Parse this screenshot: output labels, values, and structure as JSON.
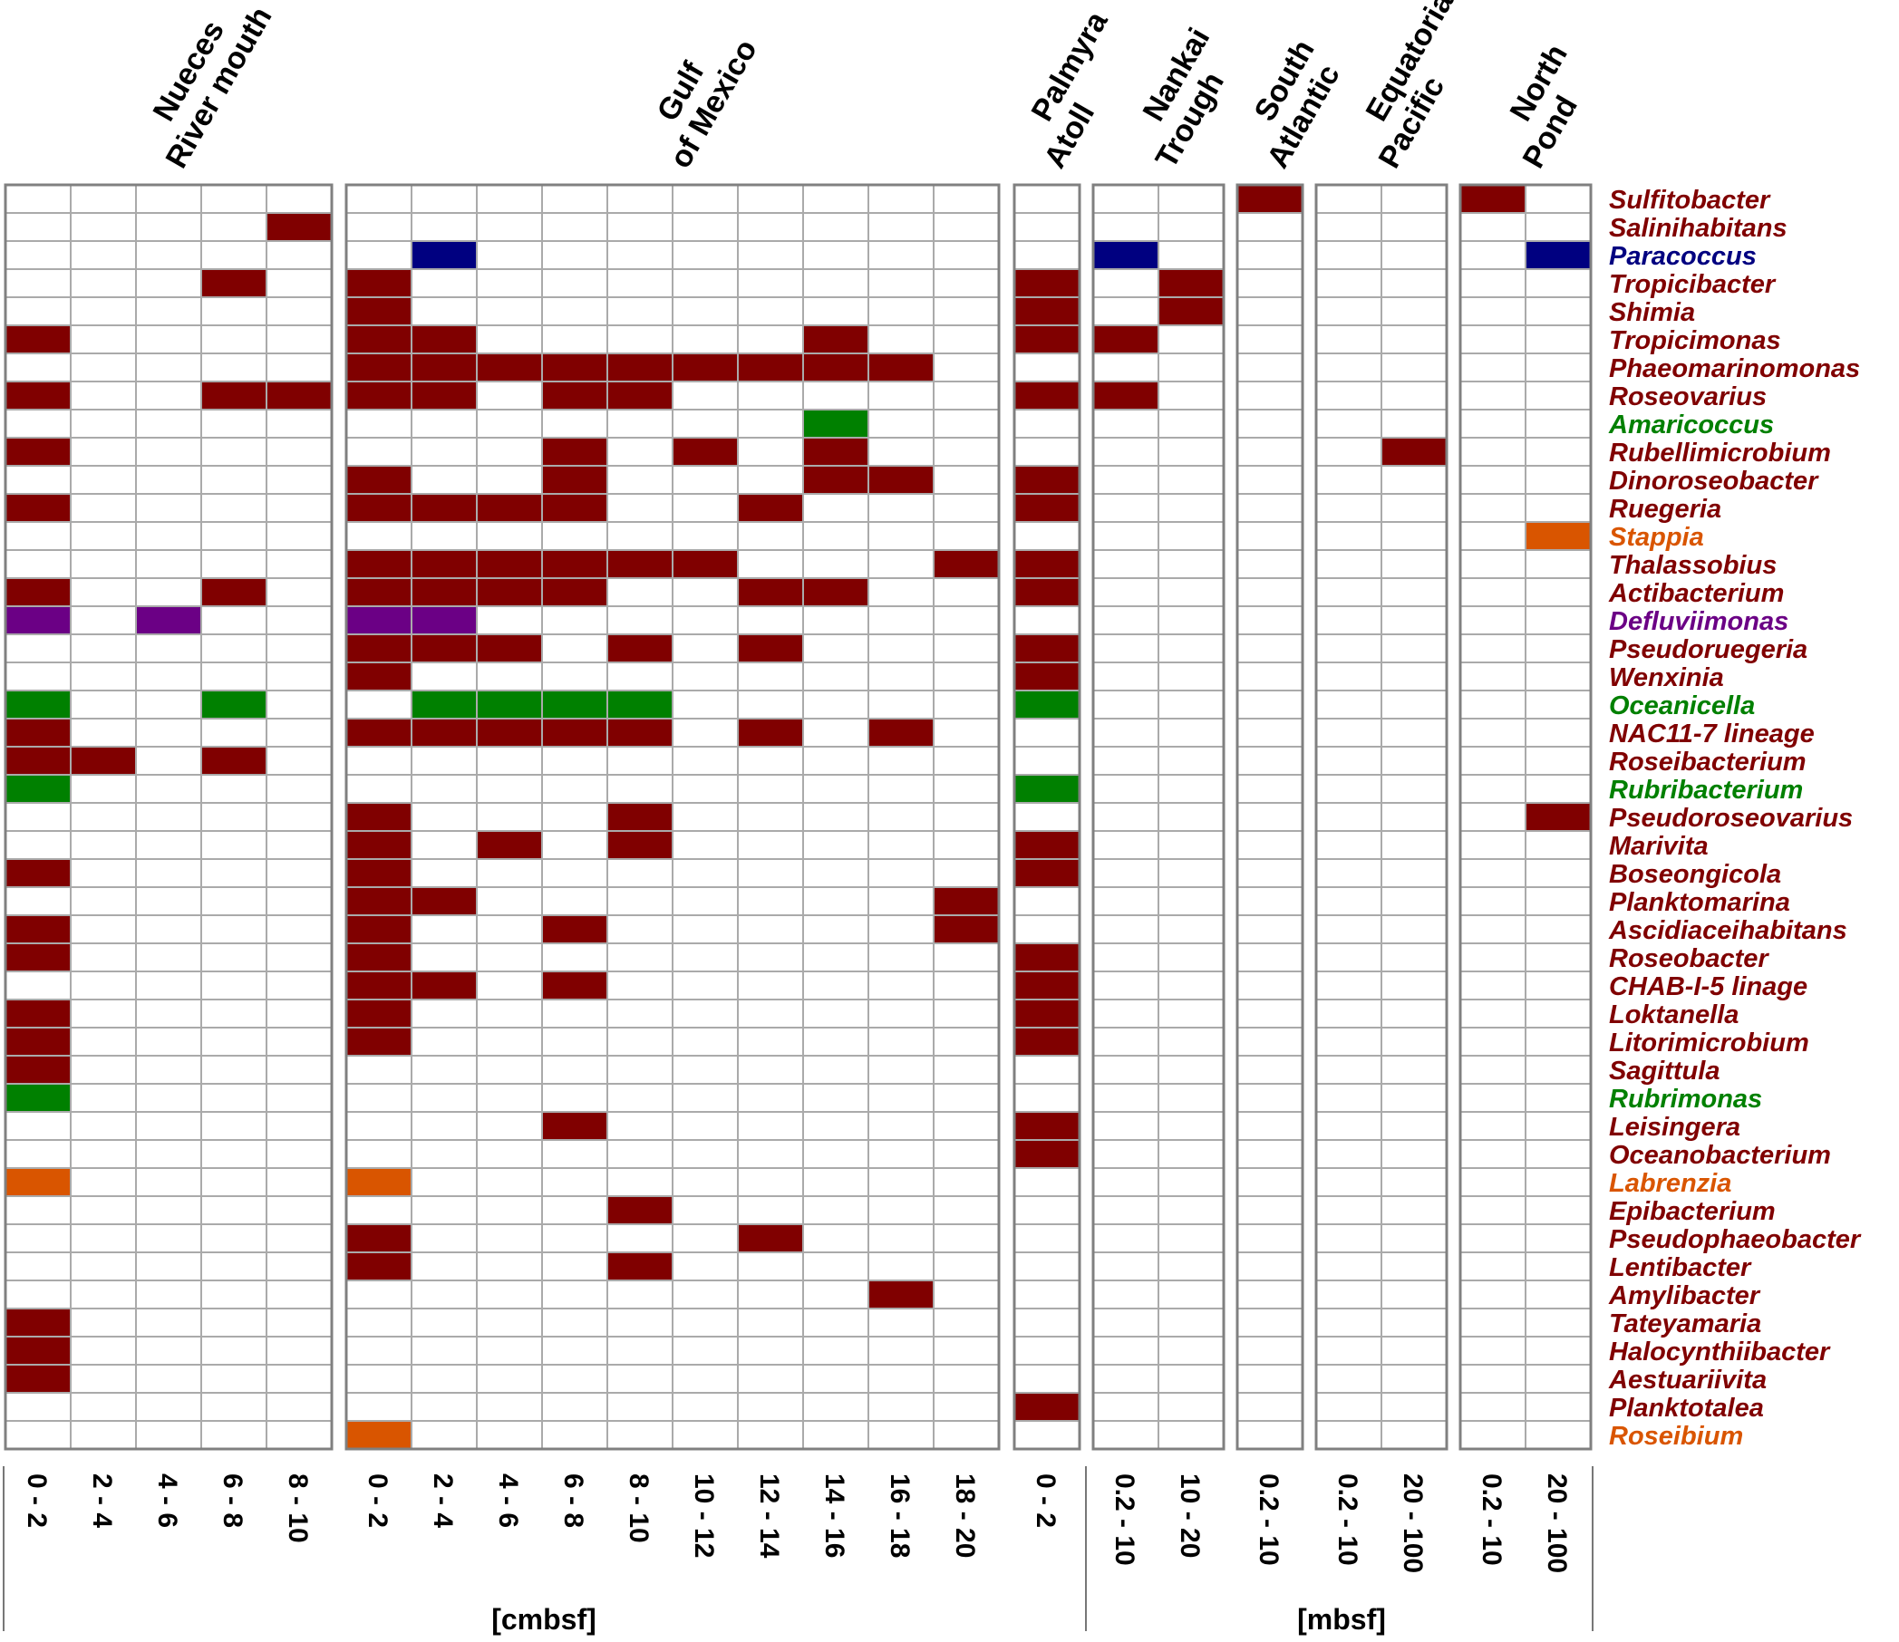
{
  "chart_data": {
    "type": "heatmap",
    "colors": {
      "default": "#800000",
      "blue": "#000080",
      "green": "#008000",
      "purple": "#6b0085",
      "orange": "#d95500",
      "grid": "#aaaaaa",
      "frame": "#808080"
    },
    "groups": [
      {
        "name": [
          "Nueces",
          "River mouth"
        ],
        "depths": [
          "0 - 2",
          "2 - 4",
          "4 - 6",
          "6 - 8",
          "8 - 10"
        ]
      },
      {
        "name": [
          "Gulf",
          "of Mexico"
        ],
        "depths": [
          "0 - 2",
          "2 - 4",
          "4 - 6",
          "6 - 8",
          "8 - 10",
          "10 - 12",
          "12 - 14",
          "14 - 16",
          "16 - 18",
          "18 - 20"
        ]
      },
      {
        "name": [
          "Palmyra",
          "Atoll"
        ],
        "depths": [
          "0 - 2"
        ]
      },
      {
        "name": [
          "Nankai",
          "Trough"
        ],
        "depths": [
          "0.2 - 10",
          "10 - 20"
        ]
      },
      {
        "name": [
          "South",
          "Atlantic"
        ],
        "depths": [
          "0.2 - 10"
        ]
      },
      {
        "name": [
          "Equatorial",
          "Pacific"
        ],
        "depths": [
          "0.2 - 10",
          "20 - 100"
        ]
      },
      {
        "name": [
          "North",
          "Pond"
        ],
        "depths": [
          "0.2 - 10",
          "20 - 100"
        ]
      }
    ],
    "units": [
      {
        "label": "[cmbsf]",
        "groups": [
          0,
          1,
          2
        ]
      },
      {
        "label": "[mbsf]",
        "groups": [
          3,
          4,
          5,
          6
        ]
      }
    ],
    "genera": [
      {
        "name": "Sulfitobacter",
        "color": "default"
      },
      {
        "name": "Salinihabitans",
        "color": "default"
      },
      {
        "name": "Paracoccus",
        "color": "blue"
      },
      {
        "name": "Tropicibacter",
        "color": "default"
      },
      {
        "name": "Shimia",
        "color": "default"
      },
      {
        "name": "Tropicimonas",
        "color": "default"
      },
      {
        "name": "Phaeomarinomonas",
        "color": "default"
      },
      {
        "name": "Roseovarius",
        "color": "default"
      },
      {
        "name": "Amaricoccus",
        "color": "green"
      },
      {
        "name": "Rubellimicrobium",
        "color": "default"
      },
      {
        "name": "Dinoroseobacter",
        "color": "default"
      },
      {
        "name": "Ruegeria",
        "color": "default"
      },
      {
        "name": "Stappia",
        "color": "orange"
      },
      {
        "name": "Thalassobius",
        "color": "default"
      },
      {
        "name": "Actibacterium",
        "color": "default"
      },
      {
        "name": "Defluviimonas",
        "color": "purple"
      },
      {
        "name": "Pseudoruegeria",
        "color": "default"
      },
      {
        "name": "Wenxinia",
        "color": "default"
      },
      {
        "name": "Oceanicella",
        "color": "green"
      },
      {
        "name": "NAC11-7 lineage",
        "color": "default"
      },
      {
        "name": "Roseibacterium",
        "color": "default"
      },
      {
        "name": "Rubribacterium",
        "color": "green"
      },
      {
        "name": "Pseudoroseovarius",
        "color": "default"
      },
      {
        "name": "Marivita",
        "color": "default"
      },
      {
        "name": "Boseongicola",
        "color": "default"
      },
      {
        "name": "Planktomarina",
        "color": "default"
      },
      {
        "name": "Ascidiaceihabitans",
        "color": "default"
      },
      {
        "name": "Roseobacter",
        "color": "default"
      },
      {
        "name": "CHAB-I-5 linage",
        "color": "default"
      },
      {
        "name": "Loktanella",
        "color": "default"
      },
      {
        "name": "Litorimicrobium",
        "color": "default"
      },
      {
        "name": "Sagittula",
        "color": "default"
      },
      {
        "name": "Rubrimonas",
        "color": "green"
      },
      {
        "name": "Leisingera",
        "color": "default"
      },
      {
        "name": "Oceanobacterium",
        "color": "default"
      },
      {
        "name": "Labrenzia",
        "color": "orange"
      },
      {
        "name": "Epibacterium",
        "color": "default"
      },
      {
        "name": "Pseudophaeobacter",
        "color": "default"
      },
      {
        "name": "Lentibacter",
        "color": "default"
      },
      {
        "name": "Amylibacter",
        "color": "default"
      },
      {
        "name": "Tateyamaria",
        "color": "default"
      },
      {
        "name": "Halocynthiibacter",
        "color": "default"
      },
      {
        "name": "Aestuariivita",
        "color": "default"
      },
      {
        "name": "Planktotalea",
        "color": "default"
      },
      {
        "name": "Roseibium",
        "color": "orange"
      }
    ],
    "presence": [
      "00000 0000000000 0 00 1 00 10",
      "00001 0000000000 0 00 0 00 00",
      "00000 0100000000 0 10 0 00 01",
      "00010 1000000000 1 01 0 00 00",
      "00000 1000000000 1 01 0 00 00",
      "10000 1100000100 1 10 0 00 00",
      "00000 1111111110 0 00 0 00 00",
      "10011 1101100000 1 10 0 00 00",
      "00000 0000000100 0 00 0 00 00",
      "10000 0001010100 0 00 0 01 00",
      "00000 1001000110 1 00 0 00 00",
      "10000 1111001000 1 00 0 00 00",
      "00000 0000000000 0 00 0 00 01",
      "00000 1111110001 1 00 0 00 00",
      "10010 1111001100 1 00 0 00 00",
      "10100 1100000000 0 00 0 00 00",
      "00000 1110101000 1 00 0 00 00",
      "00000 1000000000 1 00 0 00 00",
      "10010 0111100000 1 00 0 00 00",
      "10000 1111101010 0 00 0 00 00",
      "11010 0000000000 0 00 0 00 00",
      "10000 0000000000 1 00 0 00 00",
      "00000 1000100000 0 00 0 00 01",
      "00000 1010100000 1 00 0 00 00",
      "10000 1000000000 1 00 0 00 00",
      "00000 1100000001 0 00 0 00 00",
      "10000 1001000001 0 00 0 00 00",
      "10000 1000000000 1 00 0 00 00",
      "00000 1101000000 1 00 0 00 00",
      "10000 1000000000 1 00 0 00 00",
      "10000 1000000000 1 00 0 00 00",
      "10000 0000000000 0 00 0 00 00",
      "10000 0000000000 0 00 0 00 00",
      "00000 0001000000 1 00 0 00 00",
      "00000 0000000000 1 00 0 00 00",
      "10000 1000000000 0 00 0 00 00",
      "00000 0000100000 0 00 0 00 00",
      "00000 1000001000 0 00 0 00 00",
      "00000 1000100000 0 00 0 00 00",
      "00000 0000000010 0 00 0 00 00",
      "10000 0000000000 0 00 0 00 00",
      "10000 0000000000 0 00 0 00 00",
      "10000 0000000000 0 00 0 00 00",
      "00000 0000000000 1 00 0 00 00",
      "00000 1000000000 0 00 0 00 00"
    ]
  }
}
